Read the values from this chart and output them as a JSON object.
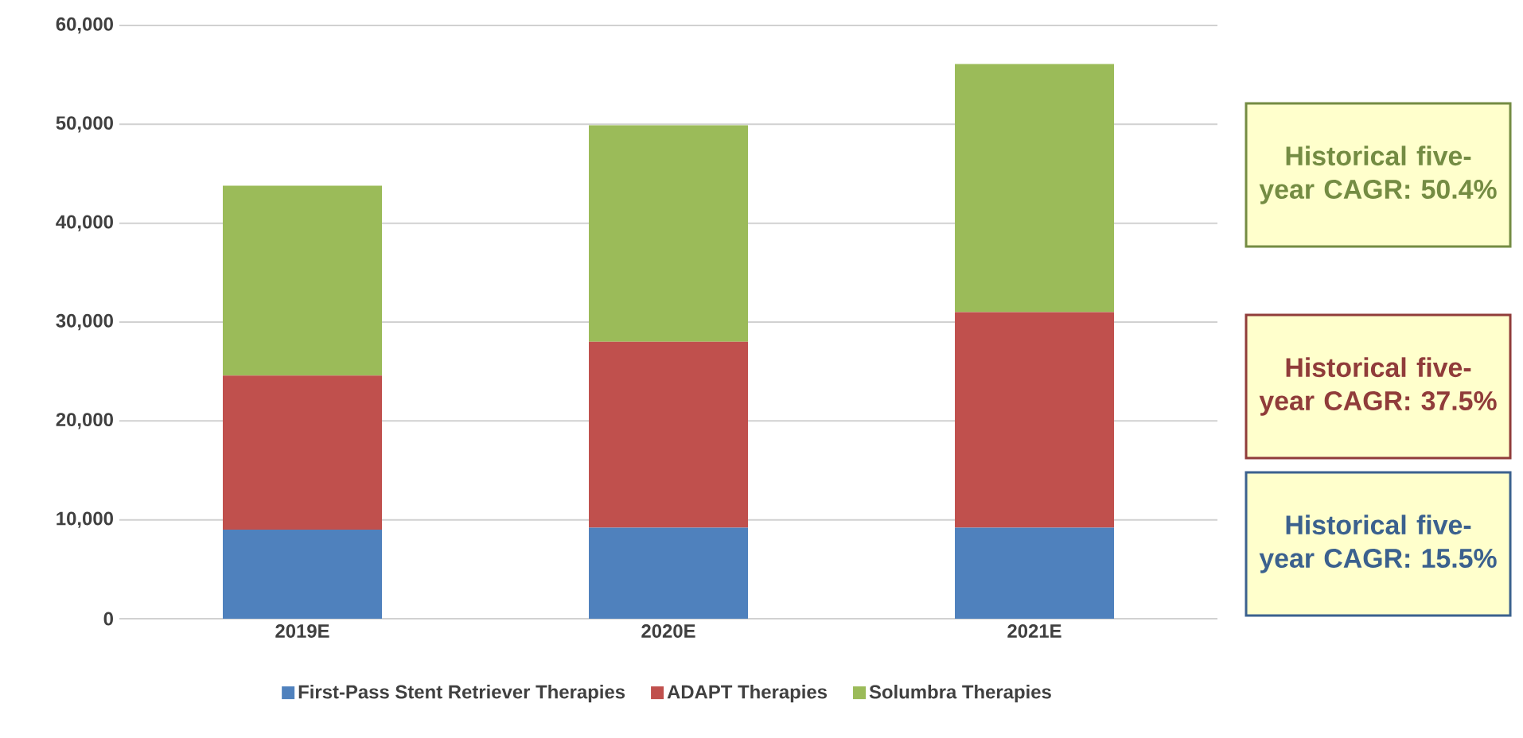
{
  "chart_data": {
    "type": "bar",
    "stacked": true,
    "categories": [
      "2019E",
      "2020E",
      "2021E"
    ],
    "series": [
      {
        "name": "First-Pass Stent Retriever Therapies",
        "color": "#4f81bd",
        "values": [
          9000,
          9200,
          9200
        ]
      },
      {
        "name": "ADAPT Therapies",
        "color": "#c0504d",
        "values": [
          15600,
          18800,
          21800
        ]
      },
      {
        "name": "Solumbra Therapies",
        "color": "#9bbb59",
        "values": [
          19200,
          21900,
          25100
        ]
      }
    ],
    "ylim": [
      0,
      60000
    ],
    "yticks": [
      {
        "value": 0,
        "label": "0"
      },
      {
        "value": 10000,
        "label": "10,000"
      },
      {
        "value": 20000,
        "label": "20,000"
      },
      {
        "value": 30000,
        "label": "30,000"
      },
      {
        "value": 40000,
        "label": "40,000"
      },
      {
        "value": 50000,
        "label": "50,000"
      },
      {
        "value": 60000,
        "label": "60,000"
      }
    ],
    "grid": "y",
    "legend": "bottom",
    "annotations": [
      "Historical five-year CAGR: 50.4%",
      "Historical five-year CAGR: 37.5%",
      "Historical five-year CAGR: 15.5%"
    ]
  }
}
